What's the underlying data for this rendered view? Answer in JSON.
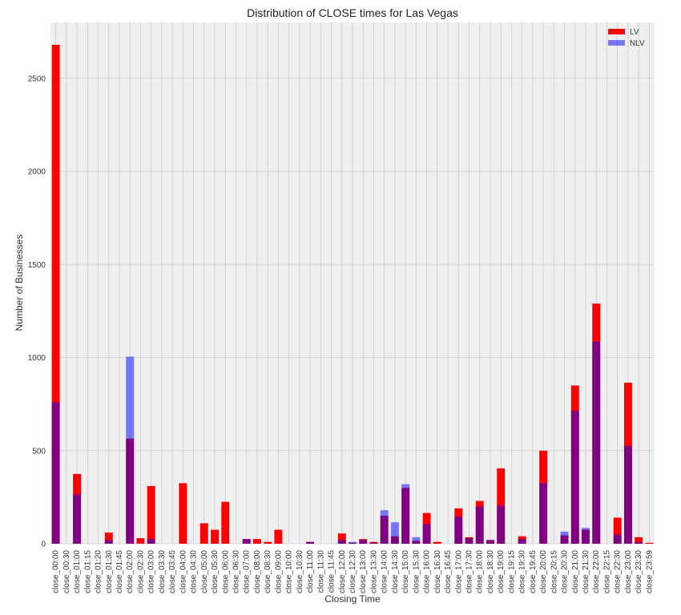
{
  "chart_data": {
    "type": "bar",
    "title": "Distribution of CLOSE times for Las Vegas",
    "xlabel": "Closing Time",
    "ylabel": "Number of Businesses",
    "ylim": [
      0,
      2800
    ],
    "yticks": [
      0,
      500,
      1000,
      1500,
      2000,
      2500
    ],
    "grid": true,
    "legend_position": "top-right",
    "categories": [
      "close_00:00",
      "close_00:30",
      "close_01:00",
      "close_01:15",
      "close_01:20",
      "close_01:30",
      "close_01:45",
      "close_02:00",
      "close_02:30",
      "close_03:00",
      "close_03:30",
      "close_03:45",
      "close_04:00",
      "close_04:30",
      "close_05:00",
      "close_05:30",
      "close_06:00",
      "close_06:30",
      "close_07:00",
      "close_08:00",
      "close_08:30",
      "close_09:00",
      "close_10:00",
      "close_10:30",
      "close_11:00",
      "close_11:30",
      "close_11:45",
      "close_12:00",
      "close_12:30",
      "close_13:00",
      "close_13:30",
      "close_14:00",
      "close_14:30",
      "close_15:00",
      "close_15:30",
      "close_16:00",
      "close_16:30",
      "close_16:45",
      "close_17:00",
      "close_17:30",
      "close_18:00",
      "close_18:30",
      "close_19:00",
      "close_19:15",
      "close_19:30",
      "close_19:45",
      "close_20:00",
      "close_20:15",
      "close_20:30",
      "close_21:00",
      "close_21:30",
      "close_22:00",
      "close_22:15",
      "close_22:30",
      "close_23:00",
      "close_23:30",
      "close_23:59"
    ],
    "series": [
      {
        "name": "LV",
        "color": "#ff0000",
        "opacity": 1.0,
        "values": [
          2680,
          0,
          375,
          0,
          0,
          60,
          0,
          565,
          30,
          310,
          0,
          0,
          325,
          0,
          110,
          75,
          225,
          0,
          25,
          25,
          10,
          75,
          0,
          0,
          10,
          0,
          0,
          55,
          5,
          25,
          10,
          150,
          40,
          300,
          15,
          165,
          10,
          0,
          190,
          35,
          230,
          20,
          405,
          0,
          40,
          0,
          500,
          0,
          45,
          850,
          75,
          1290,
          0,
          140,
          865,
          35,
          5
        ]
      },
      {
        "name": "NLV",
        "color": "#0000ff",
        "opacity": 0.5,
        "values": [
          760,
          0,
          265,
          0,
          0,
          20,
          0,
          1005,
          0,
          25,
          0,
          0,
          0,
          0,
          0,
          0,
          0,
          0,
          25,
          0,
          0,
          0,
          0,
          0,
          10,
          0,
          0,
          20,
          10,
          20,
          5,
          180,
          115,
          320,
          35,
          105,
          0,
          0,
          145,
          30,
          200,
          20,
          205,
          0,
          25,
          0,
          325,
          0,
          65,
          715,
          85,
          1085,
          0,
          50,
          525,
          10,
          0
        ]
      }
    ]
  }
}
